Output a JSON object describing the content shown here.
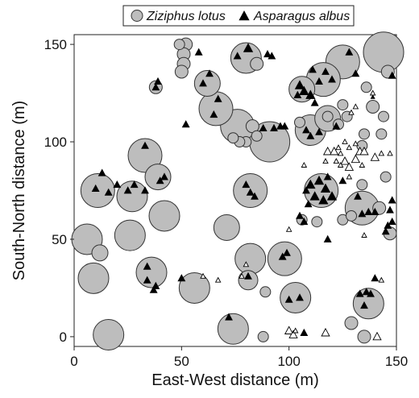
{
  "chart_data": {
    "type": "scatter",
    "xlabel": "East-West distance (m)",
    "ylabel": "South-North distance (m)",
    "xlim": [
      0,
      150
    ],
    "ylim": [
      -5,
      155
    ],
    "x_ticks": [
      "0",
      "50",
      "100",
      "150"
    ],
    "y_ticks": [
      "0",
      "50",
      "100",
      "150"
    ],
    "legend_position": "top",
    "grid": false,
    "series": [
      {
        "name": "Ziziphus lotus",
        "marker": "circle",
        "color": "#bdbdbd",
        "edge_color": "#333333",
        "points": [
          {
            "x": 144,
            "y": 146,
            "size": 9
          },
          {
            "x": 125,
            "y": 141,
            "size": 7
          },
          {
            "x": 106,
            "y": 127,
            "size": 5
          },
          {
            "x": 116,
            "y": 132,
            "size": 7
          },
          {
            "x": 91,
            "y": 100,
            "size": 9
          },
          {
            "x": 76,
            "y": 108,
            "size": 7
          },
          {
            "x": 66,
            "y": 117,
            "size": 7
          },
          {
            "x": 62,
            "y": 130,
            "size": 5
          },
          {
            "x": 80,
            "y": 143,
            "size": 6
          },
          {
            "x": 110,
            "y": 106,
            "size": 6
          },
          {
            "x": 118,
            "y": 112,
            "size": 5
          },
          {
            "x": 33,
            "y": 93,
            "size": 7
          },
          {
            "x": 39,
            "y": 82,
            "size": 5
          },
          {
            "x": 11,
            "y": 75,
            "size": 7
          },
          {
            "x": 27,
            "y": 72,
            "size": 6
          },
          {
            "x": 42,
            "y": 62,
            "size": 6
          },
          {
            "x": 82,
            "y": 75,
            "size": 7
          },
          {
            "x": 71,
            "y": 56,
            "size": 5
          },
          {
            "x": 26,
            "y": 52,
            "size": 6
          },
          {
            "x": 6,
            "y": 50,
            "size": 6
          },
          {
            "x": 9,
            "y": 30,
            "size": 6
          },
          {
            "x": 12,
            "y": 43,
            "size": 3
          },
          {
            "x": 36,
            "y": 33,
            "size": 6
          },
          {
            "x": 56,
            "y": 25,
            "size": 6
          },
          {
            "x": 82,
            "y": 40,
            "size": 6
          },
          {
            "x": 81,
            "y": 29,
            "size": 4
          },
          {
            "x": 98,
            "y": 40,
            "size": 7
          },
          {
            "x": 103,
            "y": 20,
            "size": 6
          },
          {
            "x": 74,
            "y": 4,
            "size": 6
          },
          {
            "x": 16,
            "y": 1,
            "size": 6
          },
          {
            "x": 115,
            "y": 75,
            "size": 7
          },
          {
            "x": 134,
            "y": 66,
            "size": 7
          },
          {
            "x": 137,
            "y": 17,
            "size": 6
          },
          {
            "x": 52,
            "y": 150,
            "size": 2
          },
          {
            "x": 51,
            "y": 145,
            "size": 2
          },
          {
            "x": 51,
            "y": 140,
            "size": 2
          },
          {
            "x": 50,
            "y": 136,
            "size": 2
          },
          {
            "x": 49,
            "y": 150,
            "size": 1
          },
          {
            "x": 85,
            "y": 140,
            "size": 2
          },
          {
            "x": 38,
            "y": 128,
            "size": 2
          },
          {
            "x": 118,
            "y": 113,
            "size": 1
          },
          {
            "x": 123,
            "y": 109,
            "size": 1
          },
          {
            "x": 127,
            "y": 113,
            "size": 1
          },
          {
            "x": 125,
            "y": 119,
            "size": 1
          },
          {
            "x": 136,
            "y": 128,
            "size": 1
          },
          {
            "x": 139,
            "y": 118,
            "size": 2
          },
          {
            "x": 144,
            "y": 113,
            "size": 1
          },
          {
            "x": 146,
            "y": 136,
            "size": 2
          },
          {
            "x": 135,
            "y": 104,
            "size": 1
          },
          {
            "x": 134,
            "y": 98,
            "size": 1
          },
          {
            "x": 143,
            "y": 104,
            "size": 1
          },
          {
            "x": 80,
            "y": 100,
            "size": 1
          },
          {
            "x": 83,
            "y": 108,
            "size": 2
          },
          {
            "x": 77,
            "y": 100,
            "size": 1
          },
          {
            "x": 74,
            "y": 102,
            "size": 1
          },
          {
            "x": 85,
            "y": 103,
            "size": 1
          },
          {
            "x": 105,
            "y": 110,
            "size": 1
          },
          {
            "x": 113,
            "y": 59,
            "size": 1
          },
          {
            "x": 106,
            "y": 60,
            "size": 1
          },
          {
            "x": 125,
            "y": 60,
            "size": 1
          },
          {
            "x": 129,
            "y": 62,
            "size": 1
          },
          {
            "x": 145,
            "y": 82,
            "size": 1
          },
          {
            "x": 142,
            "y": 66,
            "size": 2
          },
          {
            "x": 147,
            "y": 53,
            "size": 2
          },
          {
            "x": 89,
            "y": 23,
            "size": 1
          },
          {
            "x": 129,
            "y": 7,
            "size": 2
          },
          {
            "x": 135,
            "y": 0,
            "size": 2
          },
          {
            "x": 88,
            "y": 0,
            "size": 1
          },
          {
            "x": 134,
            "y": 78,
            "size": 1
          }
        ]
      },
      {
        "name": "Asparagus albus",
        "marker": "triangle",
        "color": "#000000",
        "points": [
          {
            "x": 81,
            "y": 148,
            "size": 3
          },
          {
            "x": 76,
            "y": 144,
            "size": 2
          },
          {
            "x": 90,
            "y": 145,
            "size": 2
          },
          {
            "x": 92,
            "y": 144,
            "size": 2
          },
          {
            "x": 58,
            "y": 146,
            "size": 2
          },
          {
            "x": 63,
            "y": 135,
            "size": 2
          },
          {
            "x": 67,
            "y": 122,
            "size": 2
          },
          {
            "x": 60,
            "y": 130,
            "size": 2
          },
          {
            "x": 65,
            "y": 114,
            "size": 2
          },
          {
            "x": 52,
            "y": 109,
            "size": 2
          },
          {
            "x": 39,
            "y": 131,
            "size": 2
          },
          {
            "x": 38,
            "y": 128,
            "size": 2
          },
          {
            "x": 105,
            "y": 129,
            "size": 3
          },
          {
            "x": 107,
            "y": 126,
            "size": 3
          },
          {
            "x": 110,
            "y": 124,
            "size": 3
          },
          {
            "x": 104,
            "y": 124,
            "size": 2
          },
          {
            "x": 112,
            "y": 120,
            "size": 2
          },
          {
            "x": 111,
            "y": 137,
            "size": 2
          },
          {
            "x": 114,
            "y": 131,
            "size": 2
          },
          {
            "x": 120,
            "y": 132,
            "size": 2
          },
          {
            "x": 117,
            "y": 136,
            "size": 2
          },
          {
            "x": 128,
            "y": 146,
            "size": 2
          },
          {
            "x": 131,
            "y": 135,
            "size": 2
          },
          {
            "x": 148,
            "y": 134,
            "size": 2
          },
          {
            "x": 139,
            "y": 123,
            "size": 1
          },
          {
            "x": 96,
            "y": 108,
            "size": 2
          },
          {
            "x": 98,
            "y": 108,
            "size": 2
          },
          {
            "x": 93,
            "y": 107,
            "size": 2
          },
          {
            "x": 88,
            "y": 107,
            "size": 2
          },
          {
            "x": 108,
            "y": 106,
            "size": 2
          },
          {
            "x": 110,
            "y": 103,
            "size": 2
          },
          {
            "x": 114,
            "y": 105,
            "size": 2
          },
          {
            "x": 122,
            "y": 108,
            "size": 2
          },
          {
            "x": 33,
            "y": 98,
            "size": 2
          },
          {
            "x": 13,
            "y": 84,
            "size": 2
          },
          {
            "x": 10,
            "y": 76,
            "size": 2
          },
          {
            "x": 16,
            "y": 74,
            "size": 2
          },
          {
            "x": 20,
            "y": 78,
            "size": 2
          },
          {
            "x": 25,
            "y": 75,
            "size": 2
          },
          {
            "x": 28,
            "y": 78,
            "size": 2
          },
          {
            "x": 33,
            "y": 75,
            "size": 2
          },
          {
            "x": 42,
            "y": 82,
            "size": 2
          },
          {
            "x": 40,
            "y": 80,
            "size": 2
          },
          {
            "x": 80,
            "y": 78,
            "size": 2
          },
          {
            "x": 82,
            "y": 74,
            "size": 2
          },
          {
            "x": 84,
            "y": 72,
            "size": 2
          },
          {
            "x": 110,
            "y": 78,
            "size": 3
          },
          {
            "x": 114,
            "y": 80,
            "size": 3
          },
          {
            "x": 117,
            "y": 76,
            "size": 3
          },
          {
            "x": 112,
            "y": 72,
            "size": 3
          },
          {
            "x": 116,
            "y": 70,
            "size": 3
          },
          {
            "x": 109,
            "y": 68,
            "size": 2
          },
          {
            "x": 120,
            "y": 72,
            "size": 3
          },
          {
            "x": 118,
            "y": 82,
            "size": 2
          },
          {
            "x": 125,
            "y": 80,
            "size": 2
          },
          {
            "x": 108,
            "y": 75,
            "size": 2
          },
          {
            "x": 132,
            "y": 72,
            "size": 2
          },
          {
            "x": 134,
            "y": 63,
            "size": 2
          },
          {
            "x": 137,
            "y": 64,
            "size": 2
          },
          {
            "x": 140,
            "y": 64,
            "size": 2
          },
          {
            "x": 147,
            "y": 65,
            "size": 2
          },
          {
            "x": 148,
            "y": 70,
            "size": 2
          },
          {
            "x": 146,
            "y": 57,
            "size": 2
          },
          {
            "x": 148,
            "y": 59,
            "size": 2
          },
          {
            "x": 145,
            "y": 54,
            "size": 2
          },
          {
            "x": 107,
            "y": 59,
            "size": 2
          },
          {
            "x": 105,
            "y": 62,
            "size": 2
          },
          {
            "x": 118,
            "y": 50,
            "size": 2
          },
          {
            "x": 34,
            "y": 36,
            "size": 2
          },
          {
            "x": 34,
            "y": 29,
            "size": 2
          },
          {
            "x": 38,
            "y": 26,
            "size": 2
          },
          {
            "x": 37,
            "y": 24,
            "size": 2
          },
          {
            "x": 50,
            "y": 30,
            "size": 2
          },
          {
            "x": 97,
            "y": 41,
            "size": 2
          },
          {
            "x": 99,
            "y": 43,
            "size": 2
          },
          {
            "x": 100,
            "y": 19,
            "size": 2
          },
          {
            "x": 105,
            "y": 20,
            "size": 2
          },
          {
            "x": 81,
            "y": 31,
            "size": 2
          },
          {
            "x": 72,
            "y": 10,
            "size": 2
          },
          {
            "x": 133,
            "y": 22,
            "size": 2
          },
          {
            "x": 136,
            "y": 23,
            "size": 2
          },
          {
            "x": 138,
            "y": 22,
            "size": 2
          },
          {
            "x": 135,
            "y": 16,
            "size": 2
          },
          {
            "x": 140,
            "y": 30,
            "size": 2
          },
          {
            "x": 107,
            "y": 2,
            "size": 2
          }
        ]
      },
      {
        "name": "",
        "marker": "open-triangle",
        "color": "#ffffff",
        "edge_color": "#000000",
        "points": [
          {
            "x": 118,
            "y": 95,
            "size": 2
          },
          {
            "x": 121,
            "y": 95,
            "size": 2
          },
          {
            "x": 124,
            "y": 94,
            "size": 1
          },
          {
            "x": 126,
            "y": 90,
            "size": 2
          },
          {
            "x": 128,
            "y": 87,
            "size": 2
          },
          {
            "x": 131,
            "y": 91,
            "size": 2
          },
          {
            "x": 133,
            "y": 95,
            "size": 2
          },
          {
            "x": 128,
            "y": 82,
            "size": 1
          },
          {
            "x": 134,
            "y": 88,
            "size": 1
          },
          {
            "x": 122,
            "y": 90,
            "size": 1
          },
          {
            "x": 124,
            "y": 88,
            "size": 1
          },
          {
            "x": 131,
            "y": 99,
            "size": 1
          },
          {
            "x": 123,
            "y": 97,
            "size": 1
          },
          {
            "x": 128,
            "y": 97,
            "size": 1
          },
          {
            "x": 117,
            "y": 90,
            "size": 1
          },
          {
            "x": 135,
            "y": 95,
            "size": 2
          },
          {
            "x": 126,
            "y": 100,
            "size": 1
          },
          {
            "x": 140,
            "y": 92,
            "size": 2
          },
          {
            "x": 143,
            "y": 94,
            "size": 1
          },
          {
            "x": 131,
            "y": 118,
            "size": 1
          },
          {
            "x": 139,
            "y": 125,
            "size": 1
          },
          {
            "x": 129,
            "y": 115,
            "size": 1
          },
          {
            "x": 147,
            "y": 94,
            "size": 1
          },
          {
            "x": 100,
            "y": 3,
            "size": 2
          },
          {
            "x": 102,
            "y": 1,
            "size": 2
          },
          {
            "x": 103,
            "y": 3,
            "size": 1
          },
          {
            "x": 117,
            "y": 2,
            "size": 2
          },
          {
            "x": 141,
            "y": 0,
            "size": 2
          },
          {
            "x": 78,
            "y": 31,
            "size": 1
          },
          {
            "x": 67,
            "y": 29,
            "size": 1
          },
          {
            "x": 60,
            "y": 31,
            "size": 1
          },
          {
            "x": 80,
            "y": 37,
            "size": 1
          },
          {
            "x": 100,
            "y": 55,
            "size": 1
          },
          {
            "x": 135,
            "y": 52,
            "size": 1
          },
          {
            "x": 143,
            "y": 29,
            "size": 1
          },
          {
            "x": 107,
            "y": 88,
            "size": 1
          }
        ]
      }
    ]
  }
}
